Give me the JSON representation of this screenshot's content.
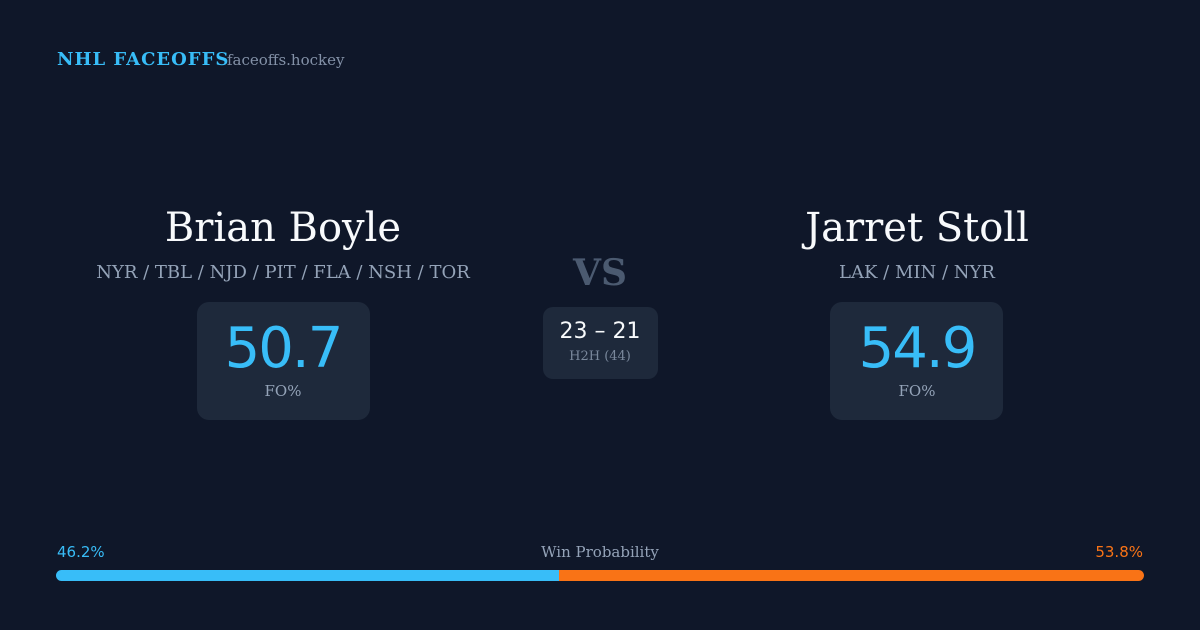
{
  "header": {
    "title": "NHL FACEOFFS",
    "site": "faceoffs.hockey"
  },
  "players": [
    {
      "name": "Brian Boyle",
      "teams": "NYR / TBL / NJD / PIT / FLA / NSH / TOR",
      "fo_pct": 50.7,
      "fo_label": "FO%"
    },
    {
      "name": "Jarret Stoll",
      "teams": "LAK / MIN / NYR",
      "fo_pct": 54.9,
      "fo_label": "FO%"
    }
  ],
  "versus": "VS",
  "h2h": {
    "score": "23 – 21",
    "label": "H2H (44)"
  },
  "win_probability": {
    "title": "Win Probability",
    "left": {
      "value": 46.2,
      "label": "46.2%",
      "color": "#38bdf8"
    },
    "right": {
      "value": 53.8,
      "label": "53.8%",
      "color": "#f97316"
    }
  }
}
